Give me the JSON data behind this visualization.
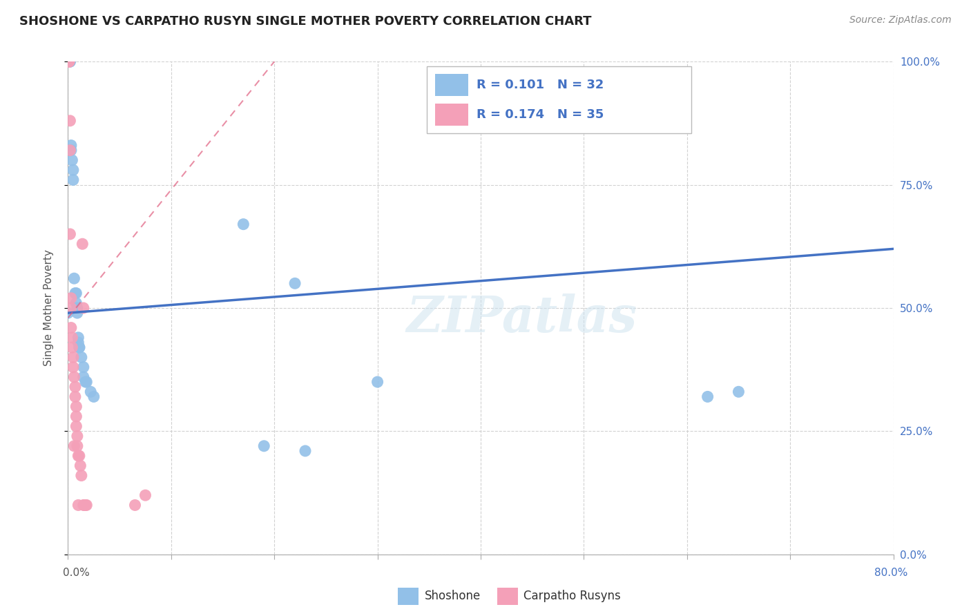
{
  "title": "SHOSHONE VS CARPATHO RUSYN SINGLE MOTHER POVERTY CORRELATION CHART",
  "source": "Source: ZipAtlas.com",
  "ylabel": "Single Mother Poverty",
  "ytick_labels": [
    "0.0%",
    "25.0%",
    "50.0%",
    "75.0%",
    "100.0%"
  ],
  "xlim": [
    0,
    0.8
  ],
  "ylim": [
    0,
    1.0
  ],
  "legend_labels": [
    "Shoshone",
    "Carpatho Rusyns"
  ],
  "shoshone_R": "R = 0.101",
  "shoshone_N": "N = 32",
  "carpatho_R": "R = 0.174",
  "carpatho_N": "N = 35",
  "shoshone_color": "#92C0E8",
  "carpatho_color": "#F4A0B8",
  "trendline_shoshone_color": "#4472C4",
  "trendline_carpatho_color": "#E06080",
  "watermark": "ZIPatlas",
  "shoshone_x": [
    0.002,
    0.002,
    0.003,
    0.003,
    0.004,
    0.005,
    0.005,
    0.006,
    0.007,
    0.008,
    0.008,
    0.009,
    0.009,
    0.01,
    0.01,
    0.011,
    0.011,
    0.013,
    0.015,
    0.015,
    0.017,
    0.018,
    0.022,
    0.025,
    0.17,
    0.19,
    0.22,
    0.23,
    0.3,
    0.62,
    0.65,
    0.0
  ],
  "shoshone_y": [
    1.0,
    1.0,
    0.83,
    0.82,
    0.8,
    0.78,
    0.76,
    0.56,
    0.53,
    0.53,
    0.51,
    0.5,
    0.49,
    0.44,
    0.43,
    0.42,
    0.42,
    0.4,
    0.38,
    0.36,
    0.35,
    0.35,
    0.33,
    0.32,
    0.67,
    0.22,
    0.55,
    0.21,
    0.35,
    0.32,
    0.33,
    0.49
  ],
  "carpatho_x": [
    0.001,
    0.001,
    0.001,
    0.002,
    0.002,
    0.002,
    0.003,
    0.003,
    0.003,
    0.004,
    0.004,
    0.005,
    0.005,
    0.006,
    0.006,
    0.007,
    0.007,
    0.008,
    0.008,
    0.008,
    0.009,
    0.009,
    0.01,
    0.01,
    0.011,
    0.012,
    0.013,
    0.014,
    0.015,
    0.015,
    0.016,
    0.017,
    0.018,
    0.065,
    0.075
  ],
  "carpatho_y": [
    1.0,
    1.0,
    1.0,
    0.88,
    0.82,
    0.65,
    0.52,
    0.5,
    0.46,
    0.44,
    0.42,
    0.4,
    0.38,
    0.36,
    0.22,
    0.34,
    0.32,
    0.3,
    0.28,
    0.26,
    0.24,
    0.22,
    0.2,
    0.1,
    0.2,
    0.18,
    0.16,
    0.63,
    0.5,
    0.1,
    0.1,
    0.1,
    0.1,
    0.1,
    0.12
  ]
}
